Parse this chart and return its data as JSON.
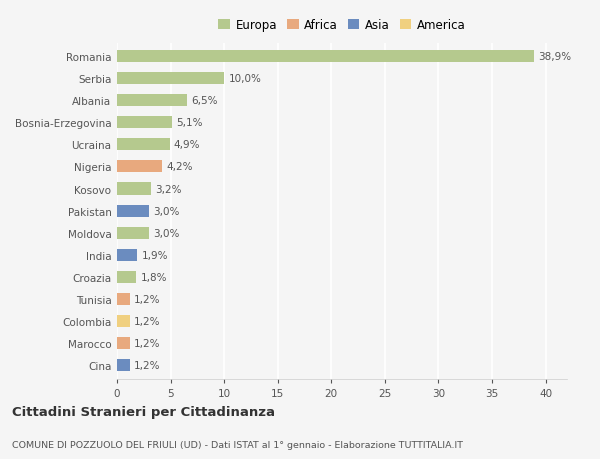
{
  "countries": [
    "Romania",
    "Serbia",
    "Albania",
    "Bosnia-Erzegovina",
    "Ucraina",
    "Nigeria",
    "Kosovo",
    "Pakistan",
    "Moldova",
    "India",
    "Croazia",
    "Tunisia",
    "Colombia",
    "Marocco",
    "Cina"
  ],
  "values": [
    38.9,
    10.0,
    6.5,
    5.1,
    4.9,
    4.2,
    3.2,
    3.0,
    3.0,
    1.9,
    1.8,
    1.2,
    1.2,
    1.2,
    1.2
  ],
  "labels": [
    "38,9%",
    "10,0%",
    "6,5%",
    "5,1%",
    "4,9%",
    "4,2%",
    "3,2%",
    "3,0%",
    "3,0%",
    "1,9%",
    "1,8%",
    "1,2%",
    "1,2%",
    "1,2%",
    "1,2%"
  ],
  "continents": [
    "Europa",
    "Europa",
    "Europa",
    "Europa",
    "Europa",
    "Africa",
    "Europa",
    "Asia",
    "Europa",
    "Asia",
    "Europa",
    "Africa",
    "America",
    "Africa",
    "Asia"
  ],
  "colors": {
    "Europa": "#b5c98e",
    "Africa": "#e8a97e",
    "Asia": "#6b8cbf",
    "America": "#f0d080"
  },
  "legend_order": [
    "Europa",
    "Africa",
    "Asia",
    "America"
  ],
  "xlim": [
    0,
    42
  ],
  "xticks": [
    0,
    5,
    10,
    15,
    20,
    25,
    30,
    35,
    40
  ],
  "title": "Cittadini Stranieri per Cittadinanza",
  "subtitle": "COMUNE DI POZZUOLO DEL FRIULI (UD) - Dati ISTAT al 1° gennaio - Elaborazione TUTTITALIA.IT",
  "background_color": "#f5f5f5",
  "grid_color": "#ffffff",
  "bar_height": 0.55,
  "label_fontsize": 7.5,
  "ytick_fontsize": 7.5,
  "xtick_fontsize": 7.5,
  "legend_fontsize": 8.5,
  "title_fontsize": 9.5,
  "subtitle_fontsize": 6.8
}
